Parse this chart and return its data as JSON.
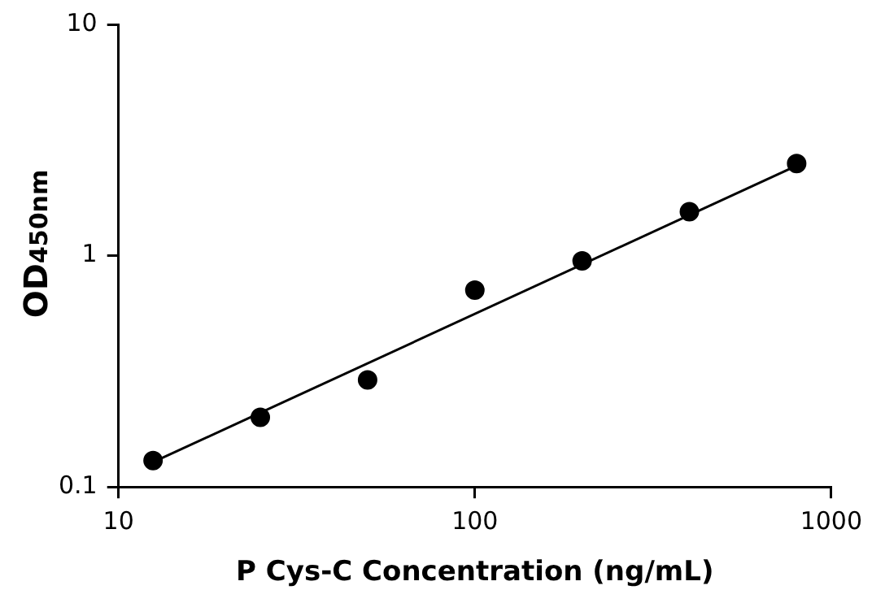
{
  "chart_data": {
    "type": "scatter",
    "xlabel": "P Cys-C Concentration (ng/mL)",
    "ylabel": "OD$_{450nm}$",
    "log": "xy",
    "grid": false,
    "legend": false,
    "marker": "circle",
    "xlim": [
      10,
      1000
    ],
    "xticks": [
      10,
      100,
      1000
    ],
    "ylim": [
      0.1,
      10
    ],
    "yticks": [
      0.1,
      1,
      10
    ],
    "series": [
      {
        "type": "scatter",
        "color": "#000000",
        "x": [
          12.5,
          25,
          50,
          100,
          200,
          400,
          800
        ],
        "values": [
          0.13,
          0.2,
          0.29,
          0.71,
          0.95,
          1.55,
          2.5
        ]
      },
      {
        "type": "line",
        "color": "#000000",
        "marker": "none",
        "line_style": "solid",
        "x": [
          12.5,
          800
        ],
        "values": [
          0.128,
          2.45
        ]
      }
    ]
  }
}
